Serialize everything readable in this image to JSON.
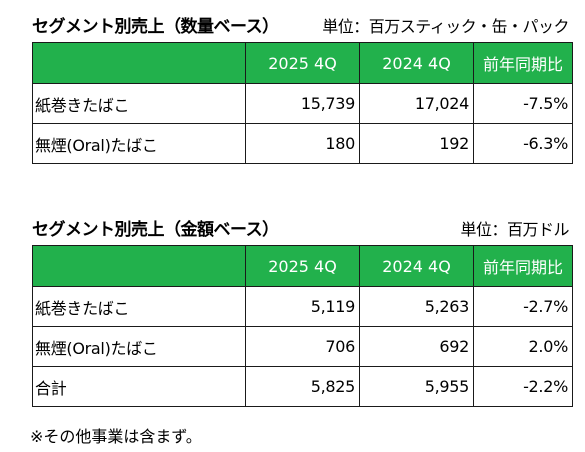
{
  "volume": {
    "title": "セグメント別売上（数量ベース）",
    "unit": "単位：百万スティック・缶・パック",
    "headers": [
      "",
      "2025 4Q",
      "2024 4Q",
      "前年同期比"
    ],
    "rows": [
      {
        "label": "紙巻きたばこ",
        "y2025": "15,739",
        "y2024": "17,024",
        "change": "-7.5%"
      },
      {
        "label": "無煙(Oral)たばこ",
        "y2025": "180",
        "y2024": "192",
        "change": "-6.3%"
      }
    ]
  },
  "value": {
    "title": "セグメント別売上（金額ベース）",
    "unit": "単位：百万ドル",
    "headers": [
      "",
      "2025 4Q",
      "2024 4Q",
      "前年同期比"
    ],
    "rows": [
      {
        "label": "紙巻きたばこ",
        "y2025": "5,119",
        "y2024": "5,263",
        "change": "-2.7%"
      },
      {
        "label": "無煙(Oral)たばこ",
        "y2025": "706",
        "y2024": "692",
        "change": "2.0%"
      },
      {
        "label": "合計",
        "y2025": "5,825",
        "y2024": "5,955",
        "change": "-2.2%"
      }
    ]
  },
  "footnote": "※その他事業は含まず。",
  "colors": {
    "header_bg": "#22b14c",
    "header_text": "#ffffff",
    "border": "#1a1a1a"
  }
}
